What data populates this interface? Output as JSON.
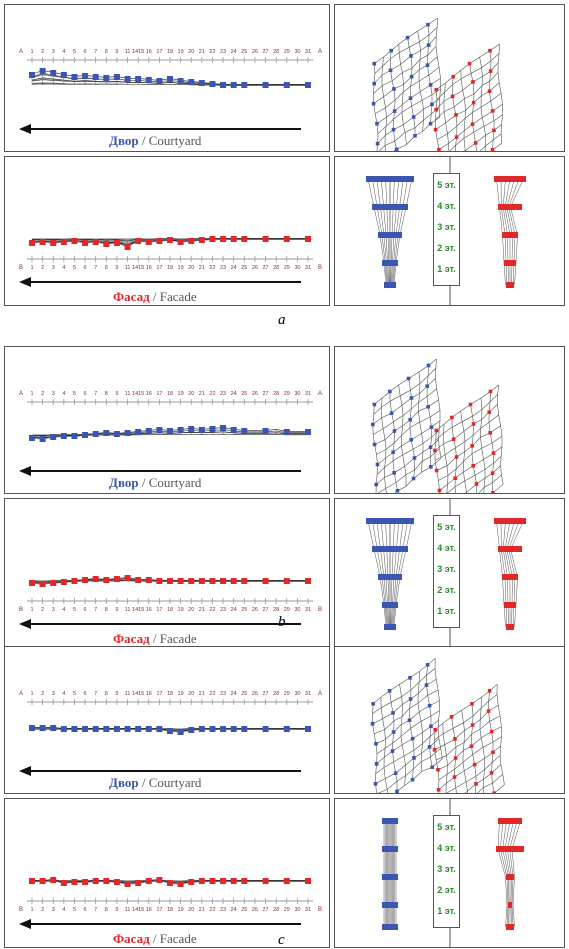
{
  "colors": {
    "blue": "#3a56b0",
    "red": "#e0282a",
    "mesh": "#555555",
    "tick": "#8b2a2a",
    "arrow": "#111111",
    "green": "#2a8a2a"
  },
  "axis": {
    "ticks": [
      "1",
      "2",
      "3",
      "4",
      "5",
      "6",
      "7",
      "8",
      "9",
      "11",
      "1415",
      "16",
      "17",
      "18",
      "19",
      "20",
      "21",
      "22",
      "23",
      "24",
      "25",
      "26",
      "27",
      "28",
      "29",
      "30",
      "31"
    ],
    "courtyard_end": "A",
    "facade_end": "B"
  },
  "captions": {
    "courtyard_ru": "Двор",
    "courtyard_en": "/ Courtyard",
    "facade_ru": "Фасад",
    "facade_en": "/ Facade"
  },
  "floors": [
    "5 эт.",
    "4 эт.",
    "3 эт.",
    "2 эт.",
    "1 эт."
  ],
  "rows": [
    {
      "letter": "a"
    },
    {
      "letter": "b"
    },
    {
      "letter": "c"
    }
  ]
}
